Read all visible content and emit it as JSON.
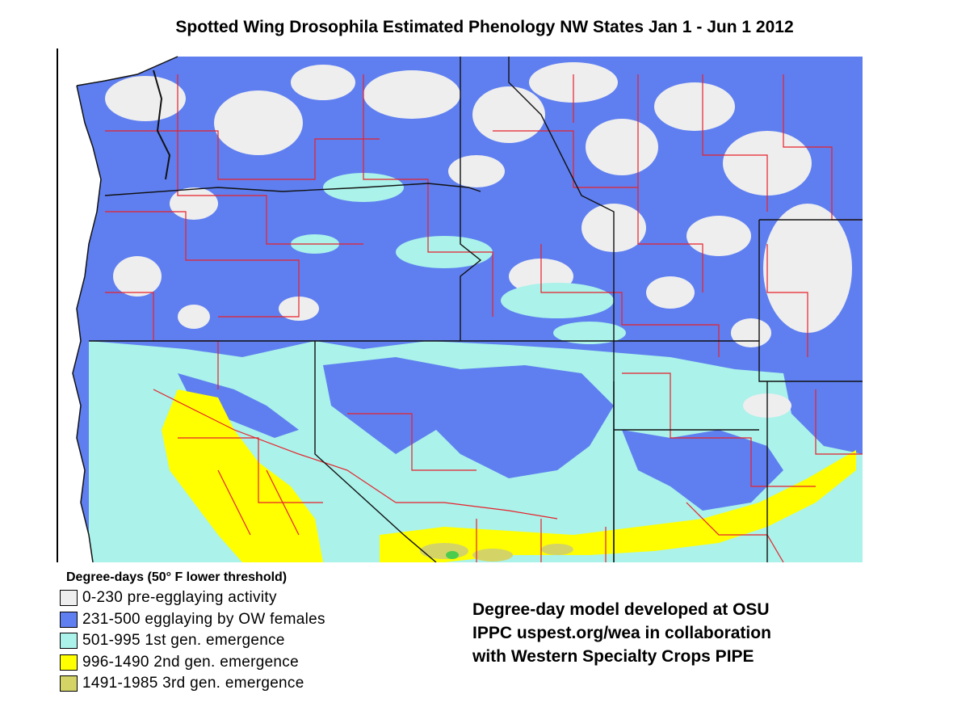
{
  "title": "Spotted Wing Drosophila Estimated Phenology NW States Jan 1 - Jun 1 2012",
  "legend": {
    "title": "Degree-days (50° F lower threshold)",
    "items": [
      {
        "label": "0-230  pre-egglaying activity",
        "color": "#eeeeee"
      },
      {
        "label": "231-500 egglaying by OW females",
        "color": "#5f7ff0"
      },
      {
        "label": "501-995  1st gen. emergence",
        "color": "#aaf2ea"
      },
      {
        "label": "996-1490  2nd gen. emergence",
        "color": "#ffff00"
      },
      {
        "label": "1491-1985  3rd gen. emergence",
        "color": "#d4d466"
      }
    ]
  },
  "credit": [
    "Degree-day model developed at OSU",
    "IPPC uspest.org/wea in collaboration",
    "with Western Specialty Crops PIPE"
  ],
  "colors": {
    "county_lines": "#e8202a",
    "state_lines": "#111111",
    "ocean": "#ffffff"
  }
}
